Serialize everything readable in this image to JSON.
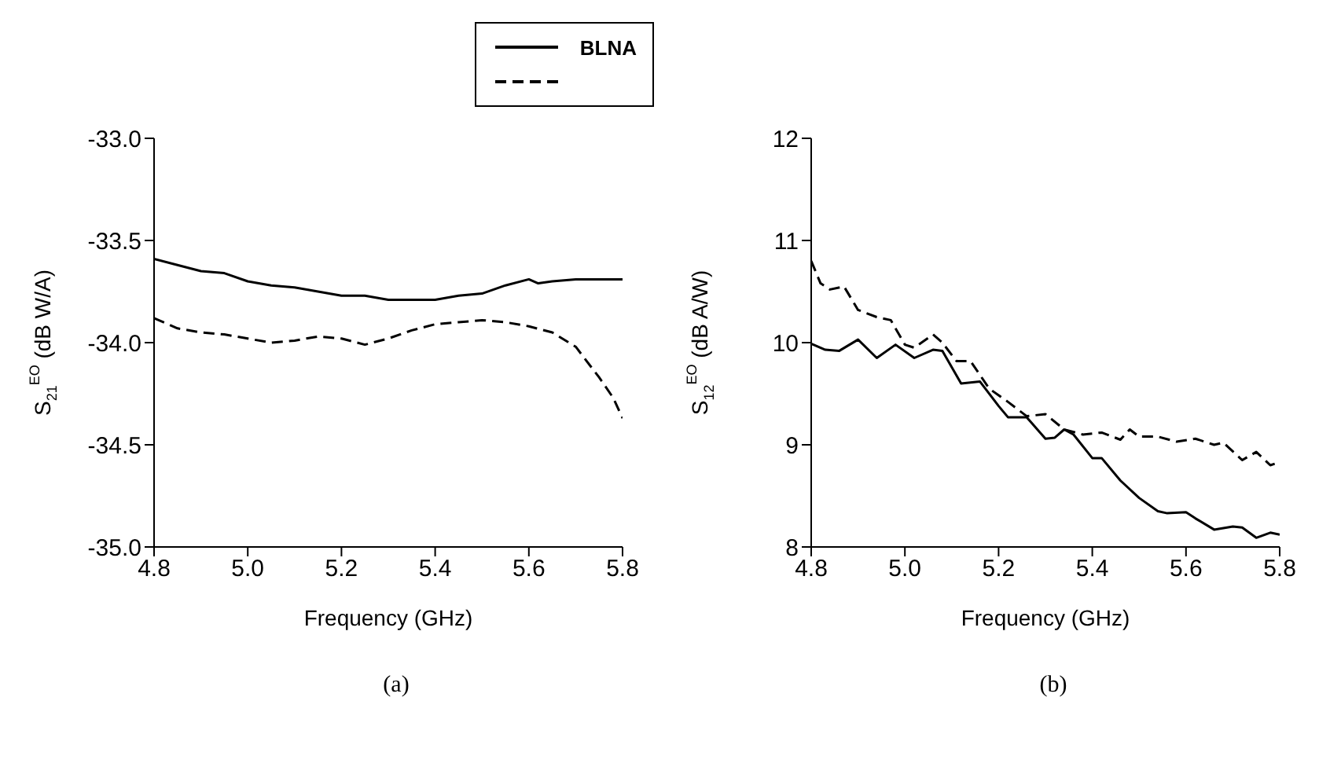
{
  "chart_data": [
    {
      "type": "line",
      "xlabel": "Frequency (GHz)",
      "ylabel": "S$_{21}$$^{EO}$ (dB W/A)",
      "xlim": [
        4.8,
        5.8
      ],
      "xticks": [
        4.8,
        {
          "value": 5,
          "label": "5.0"
        },
        5.2,
        5.4,
        5.6,
        5.8
      ],
      "ylim": [
        -35,
        -33
      ],
      "yticks": [
        {
          "value": -35,
          "label": "-35.0"
        },
        -34.5,
        {
          "value": -34,
          "label": "-34.0"
        },
        -33.5,
        {
          "value": -33,
          "label": "-33.0"
        }
      ],
      "grid": false,
      "legend": "top right",
      "marker": "none",
      "annotations": [
        "(a)"
      ],
      "series": [
        {
          "name": "BLNA",
          "color": "#000000",
          "line_style": "solid",
          "x": [
            4.8,
            4.85,
            4.9,
            4.95,
            5.0,
            5.05,
            5.1,
            5.15,
            5.2,
            5.25,
            5.3,
            5.35,
            5.4,
            5.45,
            5.5,
            5.55,
            5.6,
            5.62,
            5.65,
            5.7,
            5.75,
            5.8
          ],
          "values": [
            -33.59,
            -33.62,
            -33.65,
            -33.66,
            -33.7,
            -33.72,
            -33.73,
            -33.75,
            -33.77,
            -33.77,
            -33.79,
            -33.79,
            -33.79,
            -33.77,
            -33.76,
            -33.72,
            -33.69,
            -33.71,
            -33.7,
            -33.69,
            -33.69,
            -33.69
          ]
        },
        {
          "color": "#000000",
          "line_style": "dashed",
          "x": [
            4.8,
            4.85,
            4.9,
            4.95,
            5.0,
            5.05,
            5.1,
            5.15,
            5.2,
            5.25,
            5.3,
            5.35,
            5.4,
            5.45,
            5.5,
            5.55,
            5.6,
            5.65,
            5.7,
            5.72,
            5.75,
            5.78,
            5.8
          ],
          "values": [
            -33.88,
            -33.93,
            -33.95,
            -33.96,
            -33.98,
            -34.0,
            -33.99,
            -33.97,
            -33.98,
            -34.01,
            -33.98,
            -33.94,
            -33.91,
            -33.9,
            -33.89,
            -33.9,
            -33.92,
            -33.95,
            -34.02,
            -34.08,
            -34.17,
            -34.27,
            -34.37
          ]
        }
      ]
    },
    {
      "type": "line",
      "xlabel": "Frequency (GHz)",
      "ylabel": "S$_{12}$$^{EO}$ (dB A/W)",
      "xlim": [
        4.8,
        5.8
      ],
      "xticks": [
        4.8,
        {
          "value": 5,
          "label": "5.0"
        },
        5.2,
        5.4,
        5.6,
        5.8
      ],
      "ylim": [
        8,
        12
      ],
      "yticks": [
        8,
        9,
        10,
        11,
        12
      ],
      "grid": false,
      "marker": "none",
      "annotations": [
        "(b)"
      ],
      "series": [
        {
          "color": "#000000",
          "line_style": "solid",
          "x": [
            4.8,
            4.83,
            4.86,
            4.9,
            4.94,
            4.98,
            5.02,
            5.06,
            5.08,
            5.12,
            5.16,
            5.2,
            5.22,
            5.26,
            5.3,
            5.32,
            5.34,
            5.36,
            5.4,
            5.42,
            5.46,
            5.5,
            5.54,
            5.56,
            5.6,
            5.62,
            5.66,
            5.7,
            5.72,
            5.75,
            5.78,
            5.8
          ],
          "values": [
            9.99,
            9.93,
            9.92,
            10.03,
            9.85,
            9.98,
            9.85,
            9.93,
            9.92,
            9.6,
            9.62,
            9.38,
            9.27,
            9.27,
            9.06,
            9.07,
            9.15,
            9.1,
            8.87,
            8.87,
            8.65,
            8.48,
            8.35,
            8.33,
            8.34,
            8.28,
            8.17,
            8.2,
            8.19,
            8.09,
            8.14,
            8.12
          ]
        },
        {
          "color": "#000000",
          "line_style": "dashed",
          "x": [
            4.8,
            4.82,
            4.84,
            4.87,
            4.9,
            4.94,
            4.97,
            5.0,
            5.02,
            5.06,
            5.08,
            5.11,
            5.14,
            5.18,
            5.22,
            5.26,
            5.3,
            5.34,
            5.38,
            5.42,
            5.46,
            5.48,
            5.5,
            5.54,
            5.58,
            5.62,
            5.66,
            5.68,
            5.72,
            5.75,
            5.78,
            5.8
          ],
          "values": [
            10.8,
            10.58,
            10.52,
            10.55,
            10.32,
            10.25,
            10.22,
            9.98,
            9.95,
            10.08,
            10.0,
            9.82,
            9.82,
            9.55,
            9.42,
            9.28,
            9.3,
            9.15,
            9.1,
            9.12,
            9.05,
            9.15,
            9.08,
            9.08,
            9.03,
            9.06,
            9.0,
            9.02,
            8.85,
            8.93,
            8.8,
            8.83
          ]
        }
      ]
    }
  ]
}
